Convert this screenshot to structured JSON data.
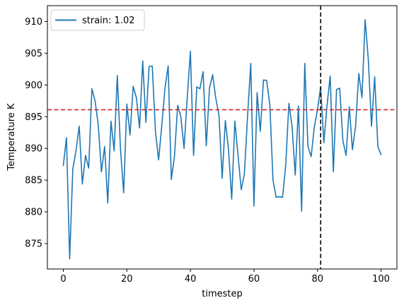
{
  "chart_data": {
    "type": "line",
    "title": "",
    "xlabel": "timestep",
    "ylabel": "Temperature K",
    "xlim": [
      -5,
      105
    ],
    "ylim": [
      871,
      912.5
    ],
    "xticks": [
      0,
      20,
      40,
      60,
      80,
      100
    ],
    "yticks": [
      875,
      880,
      885,
      890,
      895,
      900,
      905,
      910
    ],
    "grid": false,
    "legend_position": "upper-left",
    "series": [
      {
        "name": "strain: 1.02",
        "color": "#1f77b4",
        "x": [
          0,
          1,
          2,
          3,
          4,
          5,
          6,
          7,
          8,
          9,
          10,
          11,
          12,
          13,
          14,
          15,
          16,
          17,
          18,
          19,
          20,
          21,
          22,
          23,
          24,
          25,
          26,
          27,
          28,
          29,
          30,
          31,
          32,
          33,
          34,
          35,
          36,
          37,
          38,
          39,
          40,
          41,
          42,
          43,
          44,
          45,
          46,
          47,
          48,
          49,
          50,
          51,
          52,
          53,
          54,
          55,
          56,
          57,
          58,
          59,
          60,
          61,
          62,
          63,
          64,
          65,
          66,
          67,
          68,
          69,
          70,
          71,
          72,
          73,
          74,
          75,
          76,
          77,
          78,
          79,
          80,
          81,
          82,
          83,
          84,
          85,
          86,
          87,
          88,
          89,
          90,
          91,
          92,
          93,
          94,
          95,
          96,
          97,
          98,
          99,
          100
        ],
        "y": [
          887.3,
          891.7,
          872.6,
          886.8,
          889.6,
          893.5,
          884.4,
          888.9,
          886.9,
          899.4,
          897.5,
          893.7,
          886.3,
          890.3,
          881.4,
          894.3,
          889.6,
          901.5,
          889.9,
          883.0,
          897.0,
          892.1,
          899.8,
          898.0,
          893.2,
          903.8,
          894.1,
          902.9,
          903.0,
          892.7,
          888.2,
          893.6,
          899.5,
          903.0,
          885.1,
          888.8,
          896.8,
          895.0,
          890.0,
          897.9,
          905.3,
          888.9,
          899.7,
          899.4,
          902.1,
          890.4,
          899.5,
          901.6,
          897.9,
          895.2,
          885.3,
          894.4,
          889.8,
          882.0,
          894.3,
          888.9,
          883.5,
          886.0,
          895.2,
          903.4,
          880.9,
          898.8,
          892.7,
          900.8,
          900.7,
          896.9,
          885.0,
          882.3,
          882.4,
          882.3,
          887.3,
          897.1,
          893.5,
          885.8,
          896.7,
          880.1,
          903.4,
          890.3,
          888.7,
          893.4,
          896.1,
          899.7,
          890.9,
          896.8,
          901.4,
          886.3,
          899.3,
          899.5,
          891.2,
          888.9,
          896.6,
          889.8,
          893.6,
          901.8,
          898.0,
          910.3,
          904.0,
          893.5,
          901.3,
          890.3,
          889.0
        ]
      }
    ],
    "reference_lines": [
      {
        "orientation": "horizontal",
        "value": 896.1,
        "color": "#d62728",
        "style": "dashed"
      },
      {
        "orientation": "vertical",
        "value": 81,
        "color": "#000000",
        "style": "dashed"
      }
    ]
  }
}
